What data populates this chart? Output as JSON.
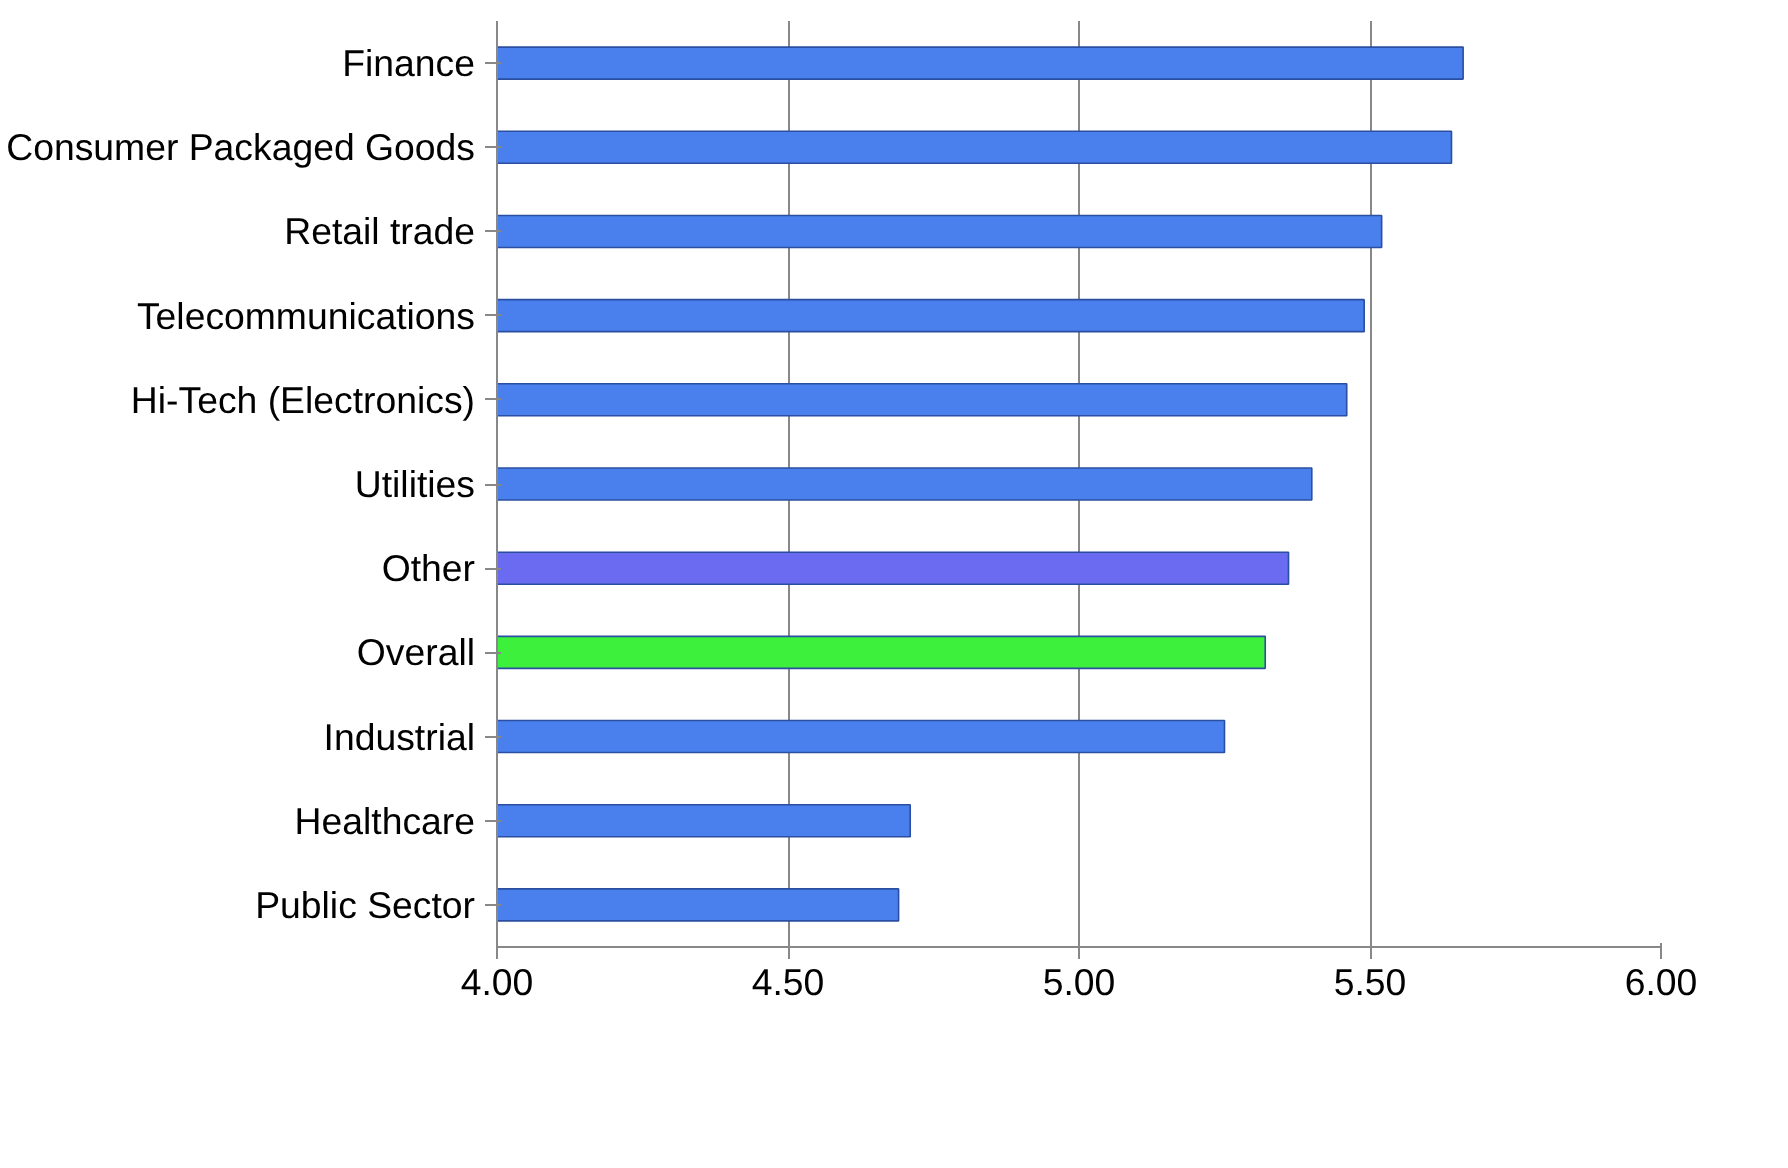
{
  "chart_data": {
    "type": "bar",
    "orientation": "horizontal",
    "categories": [
      "Finance",
      "Consumer Packaged Goods",
      "Retail trade",
      "Telecommunications",
      "Hi-Tech (Electronics)",
      "Utilities",
      "Other",
      "Overall",
      "Industrial",
      "Healthcare",
      "Public Sector"
    ],
    "values": [
      5.66,
      5.64,
      5.52,
      5.49,
      5.46,
      5.4,
      5.36,
      5.32,
      5.25,
      4.71,
      4.69
    ],
    "colors": [
      "#4a80ee",
      "#4a80ee",
      "#4a80ee",
      "#4a80ee",
      "#4a80ee",
      "#4a80ee",
      "#6b6bf2",
      "#3cf03c",
      "#4a80ee",
      "#4a80ee",
      "#4a80ee"
    ],
    "xlim": [
      4.0,
      6.0
    ],
    "xticks": [
      {
        "value": 4.0,
        "label": "4.00"
      },
      {
        "value": 4.5,
        "label": "4.50"
      },
      {
        "value": 5.0,
        "label": "5.00"
      },
      {
        "value": 5.5,
        "label": "5.50"
      },
      {
        "value": 6.0,
        "label": "6.00"
      }
    ],
    "grid": "x"
  }
}
